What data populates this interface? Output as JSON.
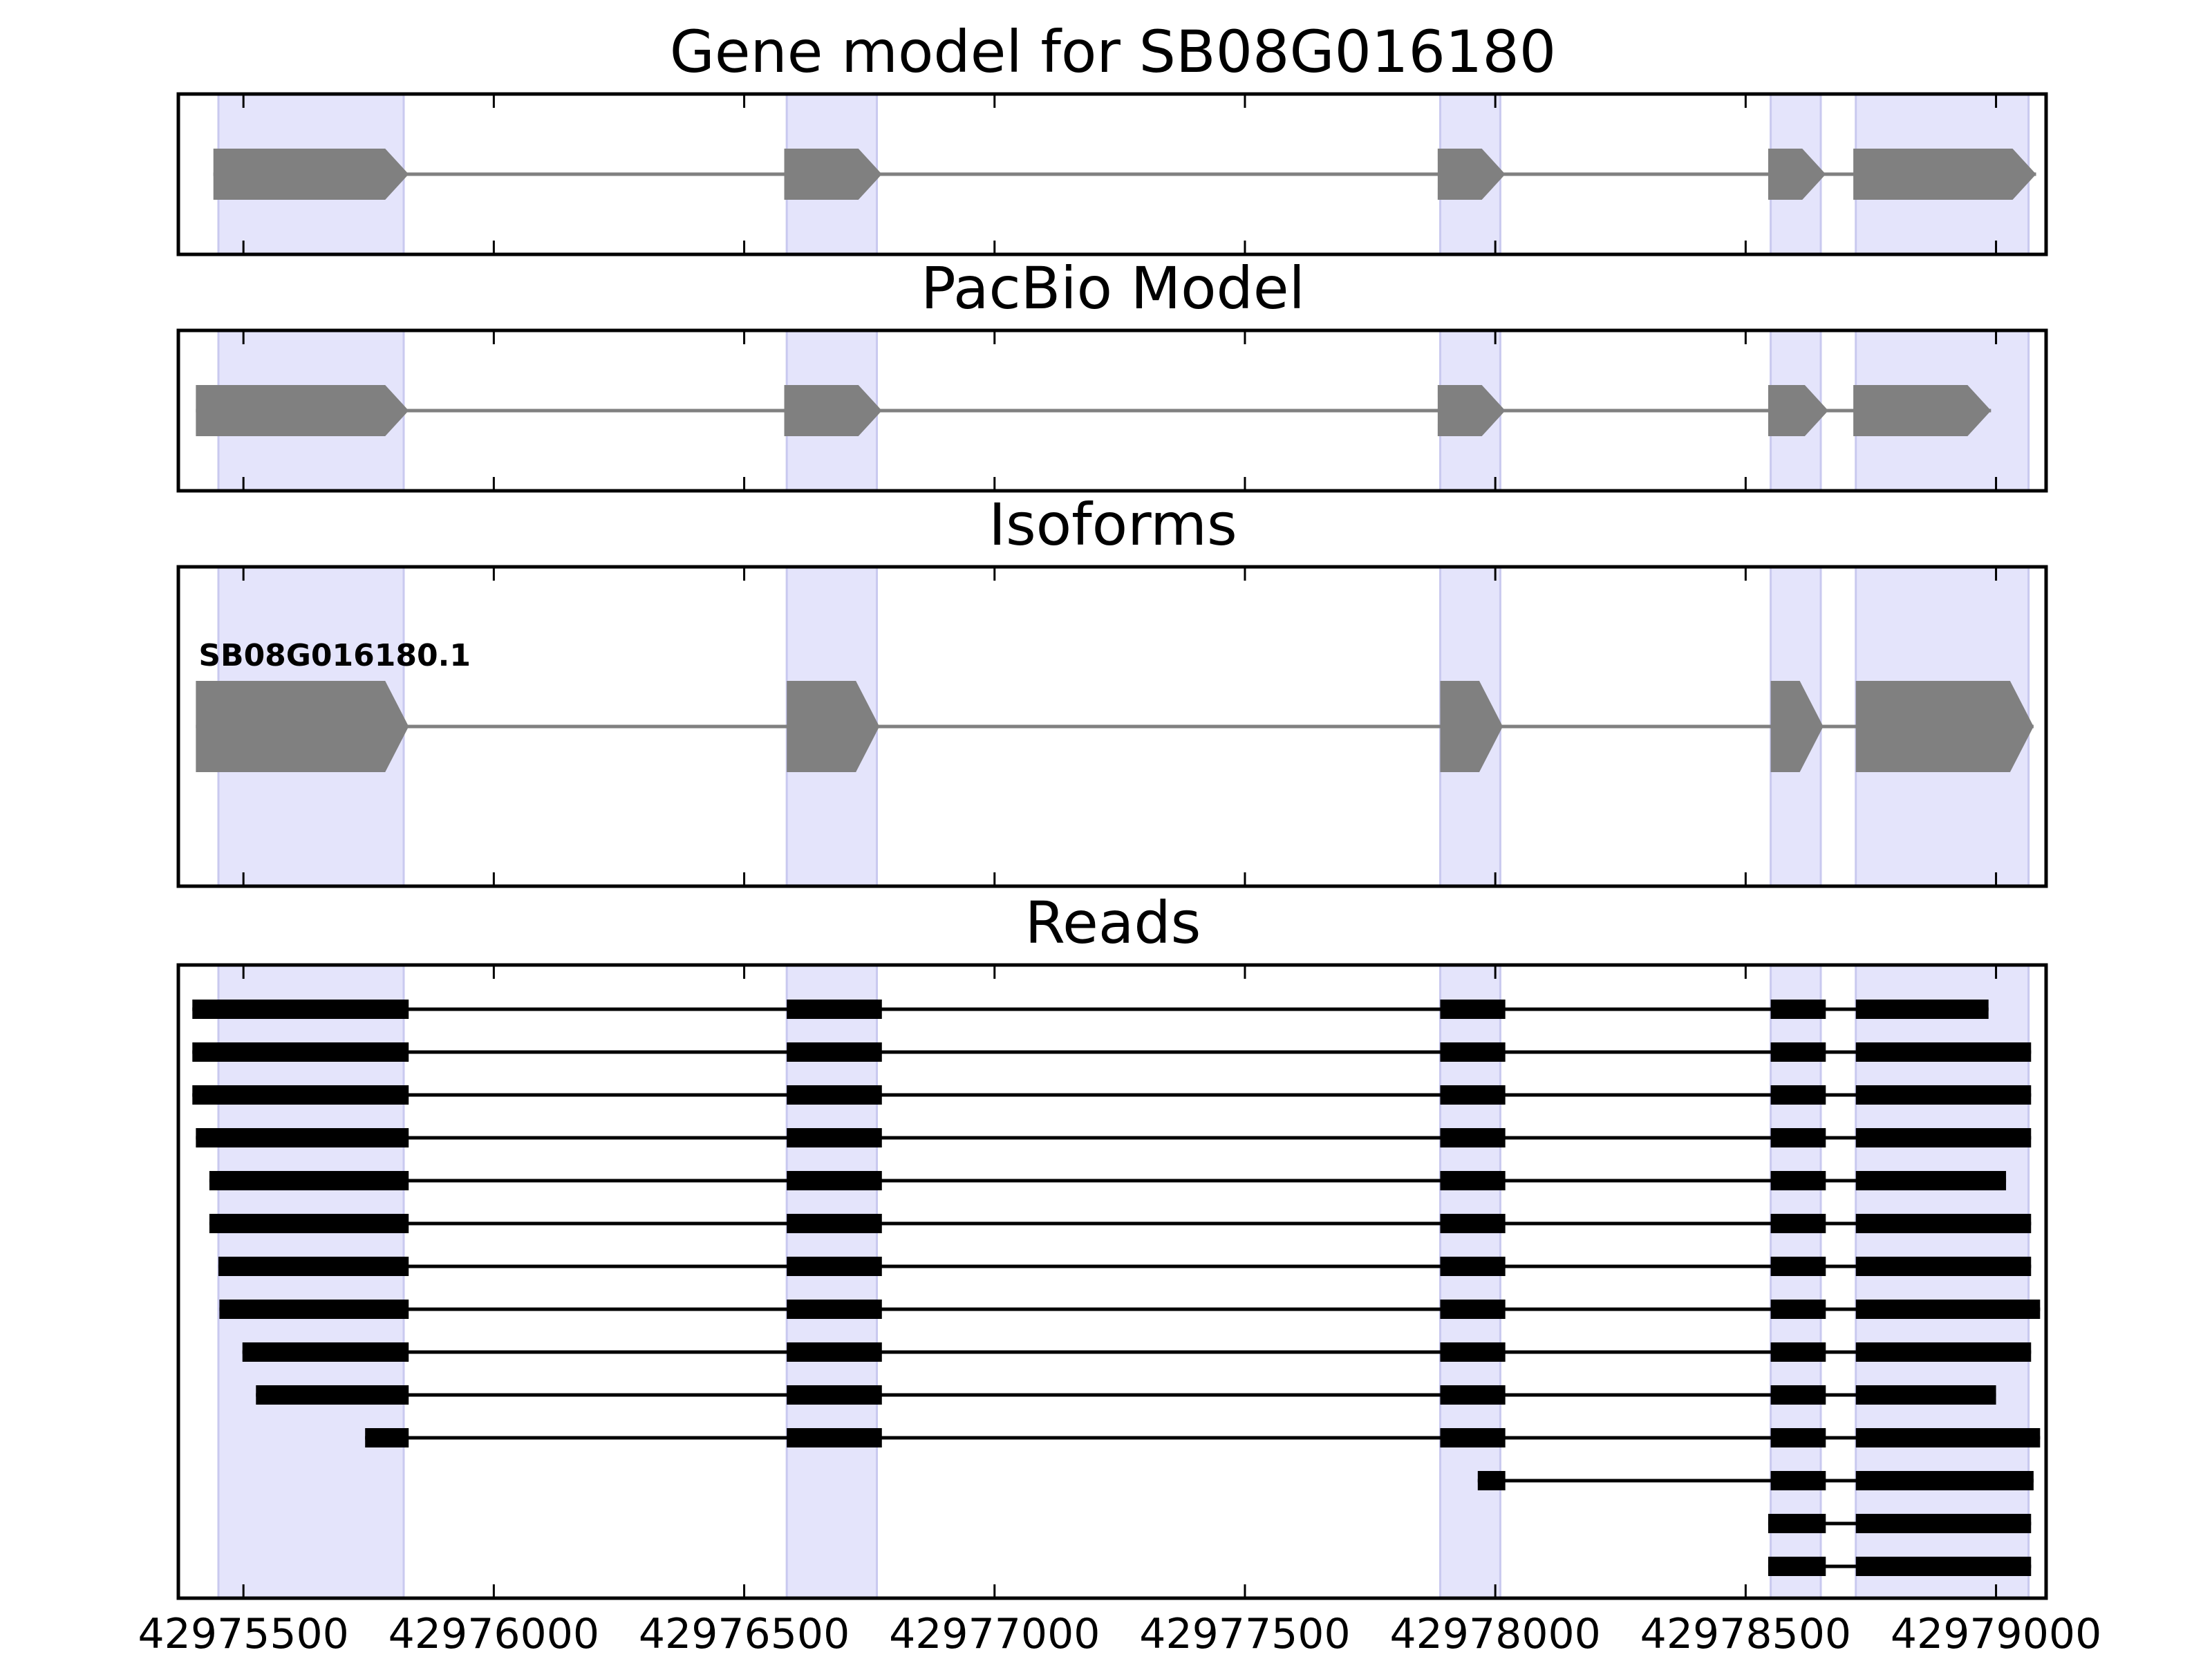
{
  "colors": {
    "background": "#ffffff",
    "exon_highlight": "#e4e4fb",
    "exon_highlight_edge": "#c9c9ef",
    "model_feature": "#808080",
    "read_feature": "#000000",
    "axis": "#000000"
  },
  "chart_data": {
    "type": "gene-track",
    "xlim": [
      42975370,
      42979100
    ],
    "xticks": [
      42975500,
      42976000,
      42976500,
      42977000,
      42977500,
      42978000,
      42978500,
      42979000
    ],
    "xtick_labels": [
      "42975500",
      "42976000",
      "42976500",
      "42977000",
      "42977500",
      "42978000",
      "42978500",
      "42979000"
    ],
    "highlight_regions": [
      [
        42975450,
        42975820
      ],
      [
        42976585,
        42976765
      ],
      [
        42977890,
        42978010
      ],
      [
        42978550,
        42978650
      ],
      [
        42978720,
        42979065
      ]
    ],
    "strand": "+",
    "panels": [
      {
        "title": "Gene model for SB08G016180",
        "style": "model",
        "transcripts": [
          {
            "label": "",
            "exons": [
              [
                42975440,
                42975830
              ],
              [
                42976580,
                42976775
              ],
              [
                42977885,
                42978020
              ],
              [
                42978545,
                42978660
              ],
              [
                42978715,
                42979080
              ]
            ]
          }
        ]
      },
      {
        "title": "PacBio Model",
        "style": "model",
        "transcripts": [
          {
            "label": "",
            "exons": [
              [
                42975405,
                42975830
              ],
              [
                42976580,
                42976775
              ],
              [
                42977885,
                42978020
              ],
              [
                42978545,
                42978665
              ],
              [
                42978715,
                42978990
              ]
            ]
          }
        ]
      },
      {
        "title": "Isoforms",
        "style": "model",
        "transcripts": [
          {
            "label": "SB08G016180.1",
            "exons": [
              [
                42975405,
                42975830
              ],
              [
                42976585,
                42976770
              ],
              [
                42977890,
                42978015
              ],
              [
                42978550,
                42978655
              ],
              [
                42978720,
                42979075
              ]
            ]
          }
        ]
      },
      {
        "title": "Reads",
        "style": "reads",
        "transcripts": [
          {
            "label": "",
            "exons": [
              [
                42975398,
                42975830
              ],
              [
                42976585,
                42976775
              ],
              [
                42977890,
                42978020
              ],
              [
                42978550,
                42978660
              ],
              [
                42978720,
                42978985
              ]
            ]
          },
          {
            "label": "",
            "exons": [
              [
                42975398,
                42975830
              ],
              [
                42976585,
                42976775
              ],
              [
                42977890,
                42978020
              ],
              [
                42978550,
                42978660
              ],
              [
                42978720,
                42979070
              ]
            ]
          },
          {
            "label": "",
            "exons": [
              [
                42975398,
                42975830
              ],
              [
                42976585,
                42976775
              ],
              [
                42977890,
                42978020
              ],
              [
                42978550,
                42978660
              ],
              [
                42978720,
                42979070
              ]
            ]
          },
          {
            "label": "",
            "exons": [
              [
                42975405,
                42975830
              ],
              [
                42976585,
                42976775
              ],
              [
                42977890,
                42978020
              ],
              [
                42978550,
                42978660
              ],
              [
                42978720,
                42979070
              ]
            ]
          },
          {
            "label": "",
            "exons": [
              [
                42975432,
                42975830
              ],
              [
                42976585,
                42976775
              ],
              [
                42977890,
                42978020
              ],
              [
                42978550,
                42978660
              ],
              [
                42978720,
                42979020
              ]
            ]
          },
          {
            "label": "",
            "exons": [
              [
                42975432,
                42975830
              ],
              [
                42976585,
                42976775
              ],
              [
                42977890,
                42978020
              ],
              [
                42978550,
                42978660
              ],
              [
                42978720,
                42979070
              ]
            ]
          },
          {
            "label": "",
            "exons": [
              [
                42975450,
                42975830
              ],
              [
                42976585,
                42976775
              ],
              [
                42977890,
                42978020
              ],
              [
                42978550,
                42978660
              ],
              [
                42978720,
                42979070
              ]
            ]
          },
          {
            "label": "",
            "exons": [
              [
                42975452,
                42975830
              ],
              [
                42976585,
                42976775
              ],
              [
                42977890,
                42978020
              ],
              [
                42978550,
                42978660
              ],
              [
                42978720,
                42979088
              ]
            ]
          },
          {
            "label": "",
            "exons": [
              [
                42975498,
                42975830
              ],
              [
                42976585,
                42976775
              ],
              [
                42977890,
                42978020
              ],
              [
                42978550,
                42978660
              ],
              [
                42978720,
                42979070
              ]
            ]
          },
          {
            "label": "",
            "exons": [
              [
                42975525,
                42975830
              ],
              [
                42976585,
                42976775
              ],
              [
                42977890,
                42978020
              ],
              [
                42978550,
                42978660
              ],
              [
                42978720,
                42979000
              ]
            ]
          },
          {
            "label": "",
            "exons": [
              [
                42975743,
                42975830
              ],
              [
                42976585,
                42976775
              ],
              [
                42977890,
                42978020
              ],
              [
                42978550,
                42978660
              ],
              [
                42978720,
                42979088
              ]
            ]
          },
          {
            "label": "",
            "exons": [
              [
                42977965,
                42978020
              ],
              [
                42978550,
                42978660
              ],
              [
                42978720,
                42979075
              ]
            ]
          },
          {
            "label": "",
            "exons": [
              [
                42978545,
                42978660
              ],
              [
                42978720,
                42979070
              ]
            ]
          },
          {
            "label": "",
            "exons": [
              [
                42978545,
                42978660
              ],
              [
                42978720,
                42979070
              ]
            ]
          }
        ]
      }
    ]
  }
}
